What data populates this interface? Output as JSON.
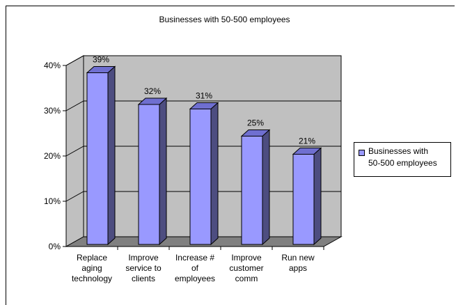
{
  "chart_data": {
    "type": "bar",
    "title": "Businesses with 50-500 employees",
    "categories": [
      [
        "Replace",
        "aging",
        "technology"
      ],
      [
        "Improve",
        "service to",
        "clients"
      ],
      [
        "Increase #",
        "of",
        "employees"
      ],
      [
        "Improve",
        "customer",
        "comm"
      ],
      [
        "Run new",
        "apps"
      ]
    ],
    "series": [
      {
        "name": "Businesses with 50-500 employees",
        "values": [
          39,
          32,
          31,
          25,
          21
        ],
        "data_labels": [
          "39%",
          "32%",
          "31%",
          "25%",
          "21%"
        ],
        "color": "#9999ff"
      }
    ],
    "ylim": [
      0,
      40
    ],
    "yticks": [
      "0%",
      "10%",
      "20%",
      "30%",
      "40%"
    ],
    "grid": true,
    "legend": "right",
    "colors": {
      "plot_back": "#c0c0c0",
      "floor": "#808080",
      "bar_front": "#9999ff",
      "bar_side": "#4d4d80",
      "bar_top": "#6f6fd0"
    }
  },
  "legend": {
    "line1": "Businesses with",
    "line2": "50-500 employees"
  }
}
